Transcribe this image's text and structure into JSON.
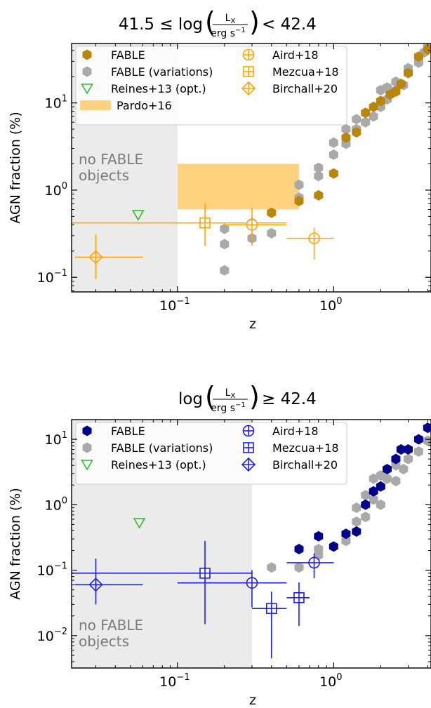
{
  "chart_data": [
    {
      "type": "scatter",
      "title_main": "41.5 ≤ log",
      "title_num": "L",
      "title_num_sub": "X",
      "title_den": "erg s",
      "title_den_sup": "−1",
      "title_tail": "< 42.4",
      "xlabel": "z",
      "ylabel": "AGN fraction (%)",
      "xscale": "log",
      "yscale": "log",
      "xlim": [
        0.021,
        4.2
      ],
      "ylim": [
        0.068,
        48
      ],
      "xticks": [
        {
          "v": 0.1,
          "base": "10",
          "exp": "−1"
        },
        {
          "v": 1,
          "base": "10",
          "exp": "0"
        }
      ],
      "yticks": [
        {
          "v": 0.1,
          "base": "10",
          "exp": "−1"
        },
        {
          "v": 1,
          "base": "10",
          "exp": "0"
        },
        {
          "v": 10,
          "base": "10",
          "exp": "1"
        }
      ],
      "shade": {
        "x_max": 0.1,
        "label_lines": [
          "no FABLE",
          "objects"
        ]
      },
      "fable_color": "#b8860b",
      "obs_color": "#ffa500",
      "legend": [
        {
          "label": "FABLE",
          "marker": "hex",
          "color": "#b8860b"
        },
        {
          "label": "FABLE (variations)",
          "marker": "hex",
          "color": "#a9a9a9"
        },
        {
          "label": "Reines+13 (opt.)",
          "marker": "tri",
          "color": "#33bb33"
        },
        {
          "label": "Pardo+16",
          "marker": "band",
          "color": "#ffd27f"
        },
        {
          "label": "Aird+18",
          "marker": "circ",
          "color": "#ffa500"
        },
        {
          "label": "Mezcua+18",
          "marker": "sq",
          "color": "#ffa500"
        },
        {
          "label": "Birchall+20",
          "marker": "dia",
          "color": "#ffa500"
        }
      ],
      "fable": [
        [
          0.4,
          0.55
        ],
        [
          0.6,
          0.75
        ],
        [
          0.8,
          0.87
        ],
        [
          1.0,
          1.55
        ],
        [
          1.2,
          4.0
        ],
        [
          1.4,
          4.6
        ],
        [
          1.6,
          7.7
        ],
        [
          1.8,
          9.0
        ],
        [
          2.0,
          10.5
        ],
        [
          2.3,
          12.5
        ],
        [
          2.5,
          13.5
        ],
        [
          2.7,
          16.5
        ],
        [
          3.0,
          22
        ],
        [
          3.5,
          34
        ],
        [
          4.0,
          41
        ]
      ],
      "variations": [
        [
          0.2,
          0.12
        ],
        [
          0.2,
          0.24
        ],
        [
          0.2,
          0.36
        ],
        [
          0.3,
          0.28
        ],
        [
          0.3,
          0.42
        ],
        [
          0.4,
          0.32
        ],
        [
          0.6,
          0.82
        ],
        [
          0.6,
          1.15
        ],
        [
          0.8,
          1.45
        ],
        [
          0.8,
          1.8
        ],
        [
          1.0,
          2.55
        ],
        [
          1.0,
          3.5
        ],
        [
          1.2,
          3.4
        ],
        [
          1.2,
          5.0
        ],
        [
          1.4,
          5.0
        ],
        [
          1.4,
          6.5
        ],
        [
          1.6,
          6.0
        ],
        [
          1.8,
          7.0
        ],
        [
          2.0,
          9.0
        ],
        [
          2.0,
          14.0
        ],
        [
          2.2,
          11.0
        ],
        [
          2.2,
          15.0
        ],
        [
          2.5,
          14.0
        ],
        [
          2.5,
          17.5
        ],
        [
          2.8,
          16.0
        ],
        [
          3.0,
          25.0
        ],
        [
          3.5,
          29.0
        ],
        [
          3.8,
          38.0
        ],
        [
          4.0,
          44.0
        ]
      ],
      "reines": [
        {
          "x": 0.056,
          "y": 0.52
        }
      ],
      "pardo": {
        "x0": 0.1,
        "x1": 0.6,
        "y0": 0.6,
        "y1": 2.0
      },
      "obs": [
        {
          "name": "Birchall+20",
          "marker": "dia",
          "x": 0.03,
          "y": 0.17,
          "xlo": 0.022,
          "xhi": 0.06,
          "ylo": 0.095,
          "yhi": 0.31
        },
        {
          "name": "Mezcua+18",
          "marker": "sq",
          "x": 0.15,
          "y": 0.42,
          "xlo": 0.021,
          "xhi": 0.5,
          "ylo": 0.23,
          "yhi": 0.7
        },
        {
          "name": "Aird+18",
          "marker": "circ",
          "x": 0.3,
          "y": 0.4,
          "xlo": 0.2,
          "xhi": 0.5,
          "ylo": 0.23,
          "yhi": 0.62
        },
        {
          "name": "Aird+18",
          "marker": "circ",
          "x": 0.75,
          "y": 0.28,
          "xlo": 0.5,
          "xhi": 1.0,
          "ylo": 0.16,
          "yhi": 0.37
        }
      ]
    },
    {
      "type": "scatter",
      "title_main": "log",
      "title_num": "L",
      "title_num_sub": "X",
      "title_den": "erg s",
      "title_den_sup": "−1",
      "title_tail": "≥ 42.4",
      "xlabel": "z",
      "ylabel": "AGN fraction (%)",
      "xscale": "log",
      "yscale": "log",
      "xlim": [
        0.021,
        4.2
      ],
      "ylim": [
        0.0032,
        20
      ],
      "xticks": [
        {
          "v": 0.1,
          "base": "10",
          "exp": "−1"
        },
        {
          "v": 1,
          "base": "10",
          "exp": "0"
        }
      ],
      "yticks": [
        {
          "v": 0.01,
          "base": "10",
          "exp": "−2"
        },
        {
          "v": 0.1,
          "base": "10",
          "exp": "−1"
        },
        {
          "v": 1,
          "base": "10",
          "exp": "0"
        },
        {
          "v": 10,
          "base": "10",
          "exp": "1"
        }
      ],
      "shade": {
        "x_max": 0.3,
        "label_lines": [
          "no FABLE",
          "objects"
        ]
      },
      "fable_color": "#00008b",
      "obs_color": "#1f1fe6",
      "legend": [
        {
          "label": "FABLE",
          "marker": "hex",
          "color": "#00008b"
        },
        {
          "label": "FABLE (variations)",
          "marker": "hex",
          "color": "#a9a9a9"
        },
        {
          "label": "Reines+13 (opt.)",
          "marker": "tri",
          "color": "#33bb33"
        },
        {
          "label": "Aird+18",
          "marker": "circ",
          "color": "#1f1fe6"
        },
        {
          "label": "Mezcua+18",
          "marker": "sq",
          "color": "#1f1fe6"
        },
        {
          "label": "Birchall+20",
          "marker": "dia",
          "color": "#1f1fe6"
        }
      ],
      "fable": [
        [
          0.6,
          0.21
        ],
        [
          0.8,
          0.33
        ],
        [
          1.0,
          0.23
        ],
        [
          1.2,
          0.36
        ],
        [
          1.4,
          0.39
        ],
        [
          1.6,
          1.0
        ],
        [
          1.8,
          1.6
        ],
        [
          2.0,
          1.9
        ],
        [
          2.2,
          3.5
        ],
        [
          2.5,
          5.0
        ],
        [
          2.7,
          7.0
        ],
        [
          3.0,
          7.0
        ],
        [
          3.5,
          10.0
        ],
        [
          4.0,
          15.0
        ]
      ],
      "variations": [
        [
          0.4,
          0.11
        ],
        [
          0.6,
          0.11
        ],
        [
          0.8,
          0.21
        ],
        [
          0.8,
          0.17
        ],
        [
          1.2,
          0.28
        ],
        [
          1.4,
          0.55
        ],
        [
          1.4,
          0.9
        ],
        [
          1.6,
          0.65
        ],
        [
          1.6,
          1.4
        ],
        [
          1.8,
          1.2
        ],
        [
          1.8,
          2.5
        ],
        [
          2.0,
          1.0
        ],
        [
          2.0,
          2.8
        ],
        [
          2.2,
          2.5
        ],
        [
          2.5,
          2.3
        ],
        [
          2.5,
          4.0
        ],
        [
          2.8,
          3.5
        ],
        [
          3.0,
          5.0
        ],
        [
          3.5,
          6.5
        ],
        [
          4.0,
          9.5
        ]
      ],
      "reines": [
        {
          "x": 0.057,
          "y": 0.53
        }
      ],
      "pardo": null,
      "obs": [
        {
          "name": "Birchall+20",
          "marker": "dia",
          "x": 0.03,
          "y": 0.06,
          "xlo": 0.022,
          "xhi": 0.06,
          "ylo": 0.03,
          "yhi": 0.15
        },
        {
          "name": "Mezcua+18",
          "marker": "sq",
          "x": 0.15,
          "y": 0.09,
          "xlo": 0.021,
          "xhi": 0.3,
          "ylo": 0.015,
          "yhi": 0.28
        },
        {
          "name": "Aird+18",
          "marker": "circ",
          "x": 0.3,
          "y": 0.064,
          "xlo": 0.1,
          "xhi": 0.5,
          "ylo": 0.027,
          "yhi": 0.1
        },
        {
          "name": "Mezcua+18",
          "marker": "sq",
          "x": 0.4,
          "y": 0.026,
          "xlo": 0.3,
          "xhi": 0.5,
          "ylo": 0.0045,
          "yhi": 0.047
        },
        {
          "name": "Mezcua+18",
          "marker": "sq",
          "x": 0.6,
          "y": 0.038,
          "xlo": 0.5,
          "xhi": 0.7,
          "ylo": 0.014,
          "yhi": 0.065
        },
        {
          "name": "Aird+18",
          "marker": "circ",
          "x": 0.75,
          "y": 0.13,
          "xlo": 0.5,
          "xhi": 1.0,
          "ylo": 0.075,
          "yhi": 0.18
        }
      ]
    }
  ]
}
